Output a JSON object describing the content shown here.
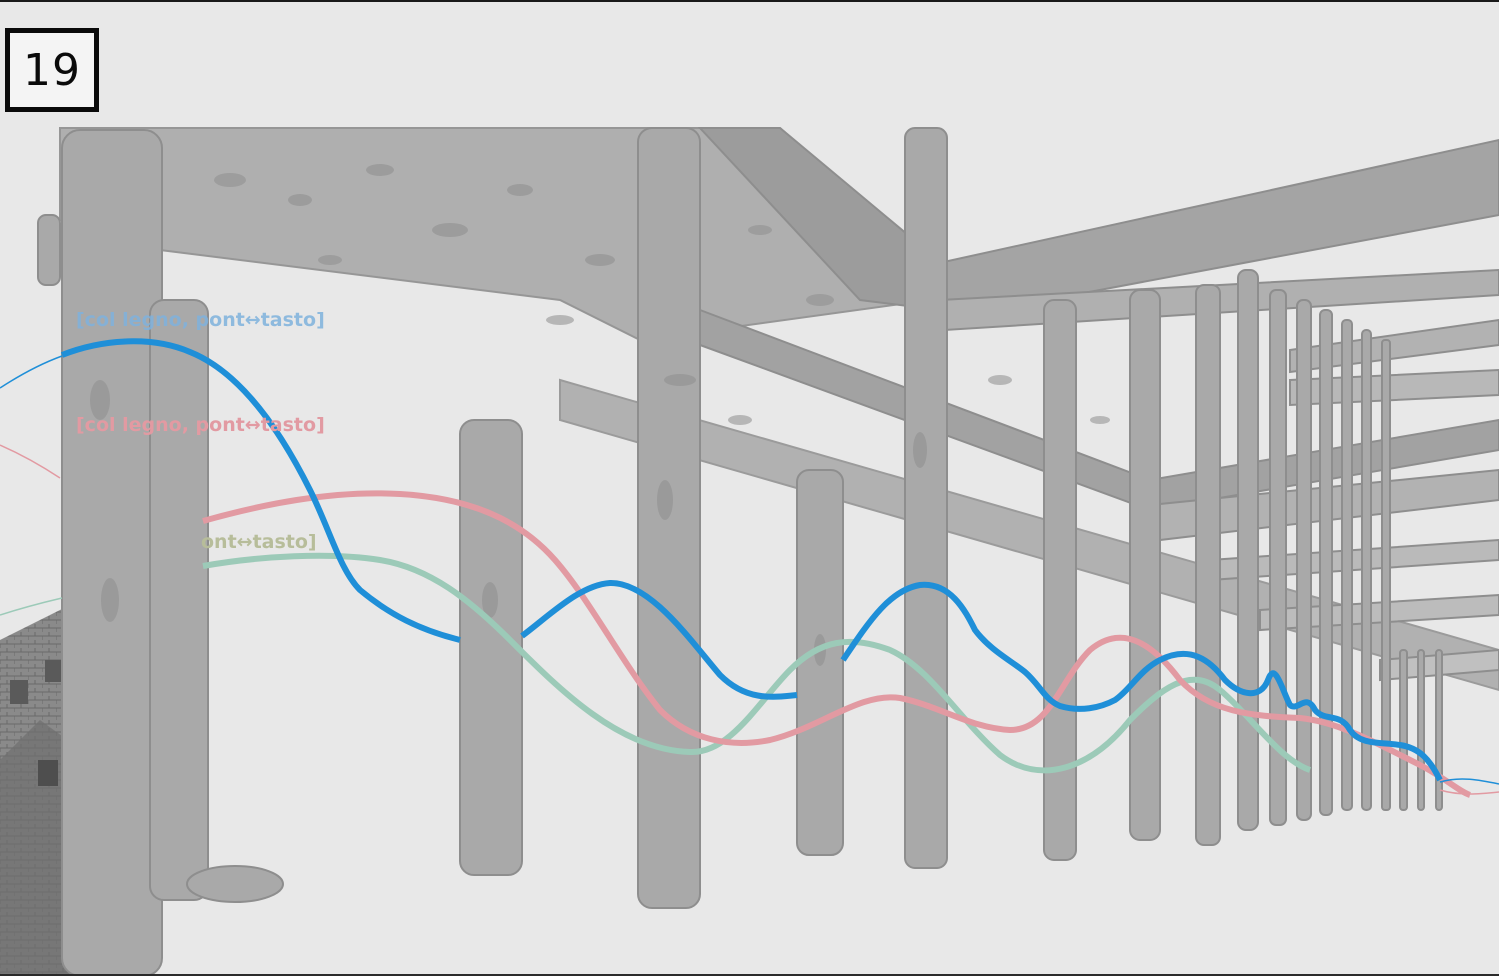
{
  "page_number": "19",
  "labels": {
    "blue": "[col legno, pont↔tasto]",
    "pink": "[col legno, pont↔tasto]",
    "green": "ont↔tasto]"
  },
  "colors": {
    "background": "#e8e8e8",
    "blue": "#1f8fd8",
    "pink": "#e29aa2",
    "green": "#9ccab8",
    "green_label": "#b7bd9a",
    "timber": "#a9a9a9",
    "timber_dark": "#8e8e8e",
    "building": "#7d7d7d"
  }
}
